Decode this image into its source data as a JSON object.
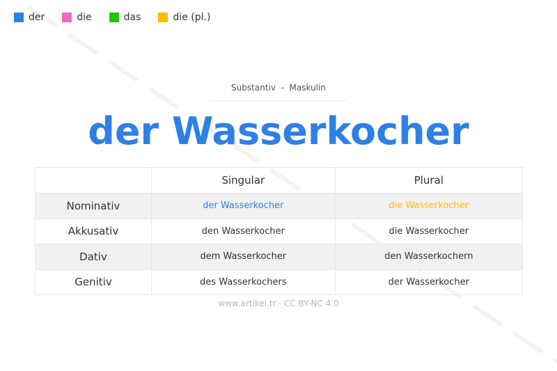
{
  "legend": [
    {
      "label": "der",
      "color": "#2f80e4"
    },
    {
      "label": "die",
      "color": "#f06bc0"
    },
    {
      "label": "das",
      "color": "#22c40c"
    },
    {
      "label": "die (pl.)",
      "color": "#ffbb00"
    }
  ],
  "watermark": "artikel.tr - artikel.tr - artikel.tr - artikel.tr - artikel.tr - artikel.tr",
  "subtitle": "Substantiv  -  Maskulin",
  "title": "der Wasserkocher",
  "table": {
    "headers": [
      "",
      "Singular",
      "Plural"
    ],
    "rows": [
      {
        "case": "Nominativ",
        "singular": "der Wasserkocher",
        "plural": "die Wasserkocher",
        "singular_color": "#2f80e4",
        "plural_color": "#ffbb00"
      },
      {
        "case": "Akkusativ",
        "singular": "den Wasserkocher",
        "plural": "die Wasserkocher"
      },
      {
        "case": "Dativ",
        "singular": "dem Wasserkocher",
        "plural": "den Wasserkochern"
      },
      {
        "case": "Genitiv",
        "singular": "des Wasserkochers",
        "plural": "der Wasserkocher"
      }
    ]
  },
  "footer": "www.artikel.tr · CC BY-NC 4.0"
}
